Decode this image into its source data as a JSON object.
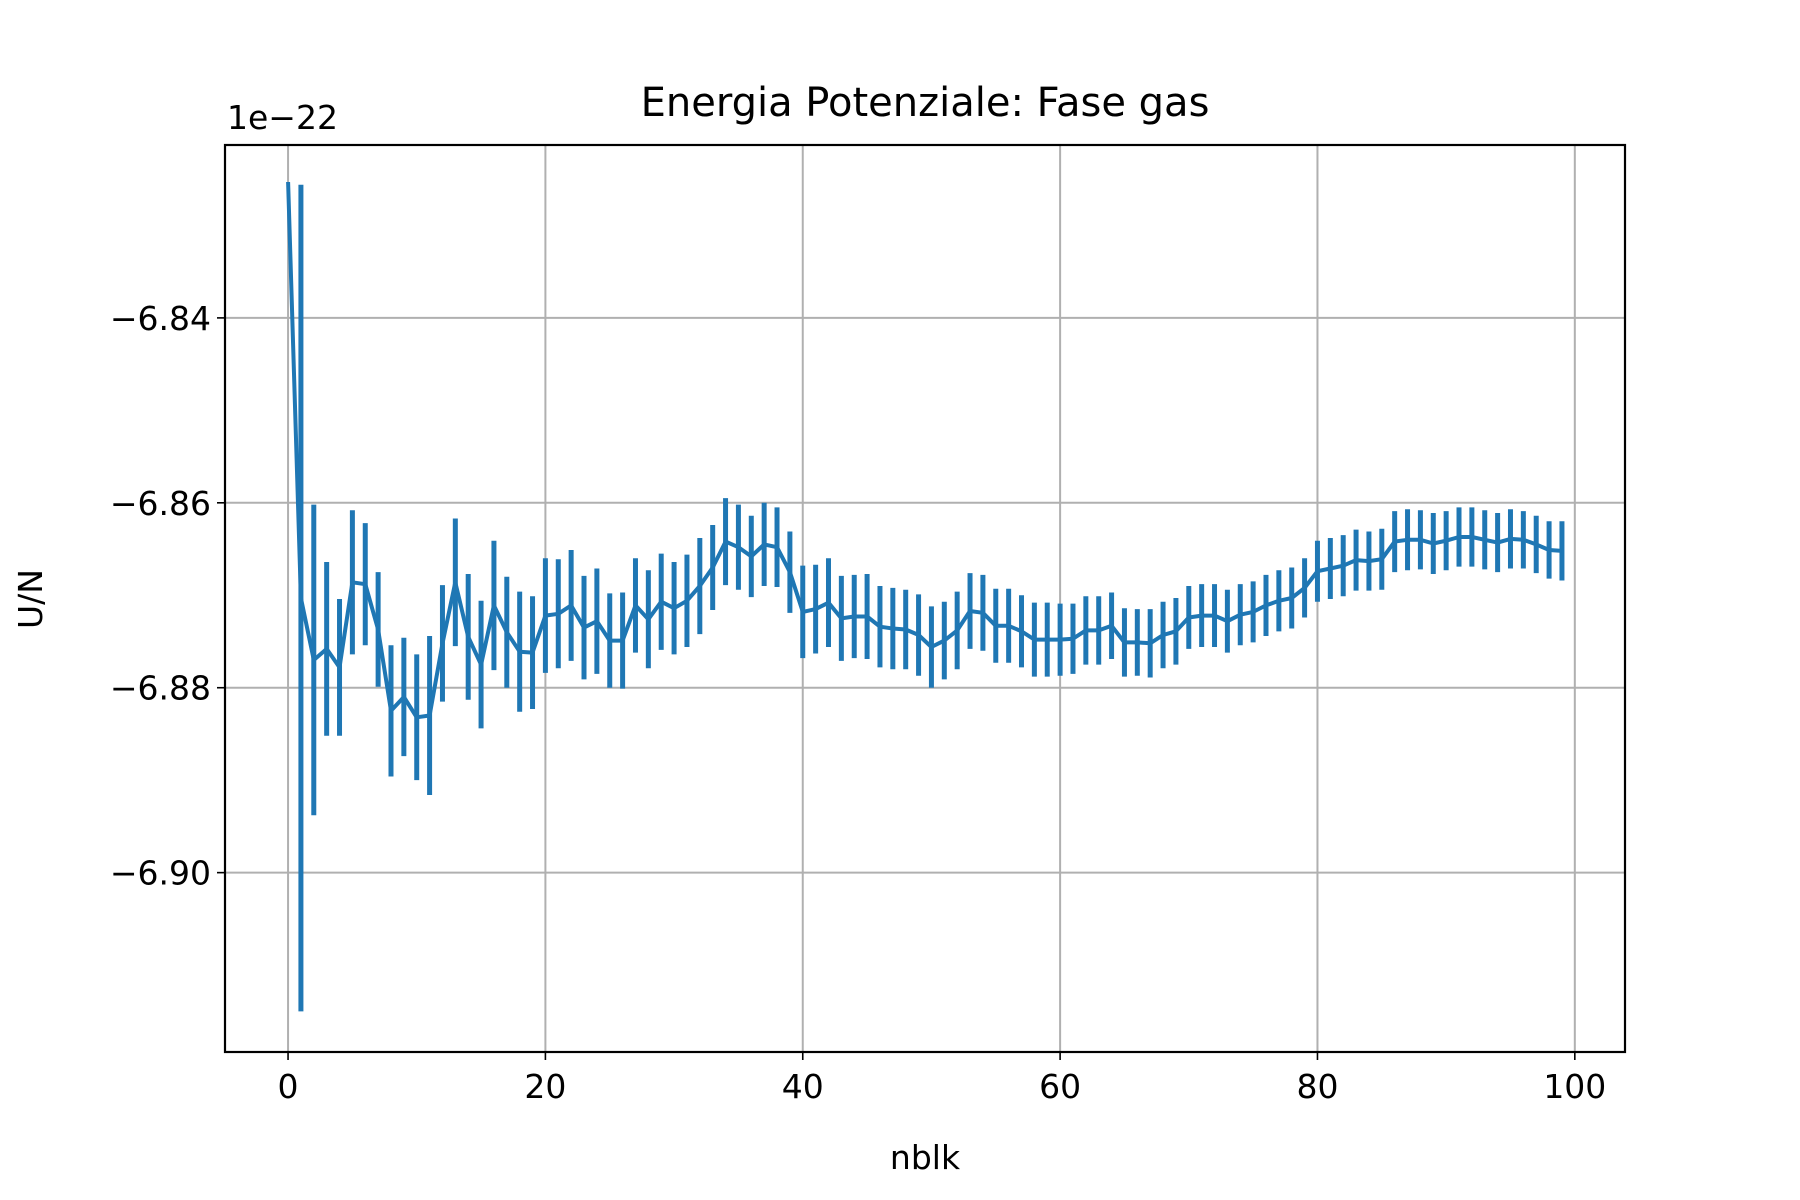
{
  "chart_data": {
    "type": "line",
    "title": "Energia Potenziale: Fase gas",
    "xlabel": "nblk",
    "ylabel": "U/N",
    "y_offset_label": "1e−22",
    "xlim": [
      -4.9,
      103.9
    ],
    "ylim": [
      -6.9194,
      -6.8213
    ],
    "x_ticks": [
      0,
      20,
      40,
      60,
      80,
      100
    ],
    "x_tick_labels": [
      "0",
      "20",
      "40",
      "60",
      "80",
      "100"
    ],
    "y_ticks": [
      -6.84,
      -6.86,
      -6.88,
      -6.9
    ],
    "y_tick_labels": [
      "−6.84",
      "−6.86",
      "−6.88",
      "−6.90"
    ],
    "grid": true,
    "color": "#1f77b4",
    "series": [
      {
        "x": [
          0,
          1,
          2,
          3,
          4,
          5,
          6,
          7,
          8,
          9,
          10,
          11,
          12,
          13,
          14,
          15,
          16,
          17,
          18,
          19,
          20,
          21,
          22,
          23,
          24,
          25,
          26,
          27,
          28,
          29,
          30,
          31,
          32,
          33,
          34,
          35,
          36,
          37,
          38,
          39,
          40,
          41,
          42,
          43,
          44,
          45,
          46,
          47,
          48,
          49,
          50,
          51,
          52,
          53,
          54,
          55,
          56,
          57,
          58,
          59,
          60,
          61,
          62,
          63,
          64,
          65,
          66,
          67,
          68,
          69,
          70,
          71,
          72,
          73,
          74,
          75,
          76,
          77,
          78,
          79,
          80,
          81,
          82,
          83,
          84,
          85,
          86,
          87,
          88,
          89,
          90,
          91,
          92,
          93,
          94,
          95,
          96,
          97,
          98,
          99
        ],
        "y": [
          -6.8253,
          -6.8703,
          -6.877,
          -6.8758,
          -6.8778,
          -6.8686,
          -6.8688,
          -6.8737,
          -6.8825,
          -6.881,
          -6.8832,
          -6.883,
          -6.8752,
          -6.8686,
          -6.8745,
          -6.8775,
          -6.8711,
          -6.874,
          -6.8761,
          -6.8762,
          -6.8722,
          -6.872,
          -6.8711,
          -6.8735,
          -6.8728,
          -6.8749,
          -6.8749,
          -6.8711,
          -6.8726,
          -6.8707,
          -6.8714,
          -6.8706,
          -6.869,
          -6.867,
          -6.8642,
          -6.8648,
          -6.8658,
          -6.8645,
          -6.8648,
          -6.8675,
          -6.8718,
          -6.8715,
          -6.8708,
          -6.8725,
          -6.8723,
          -6.8723,
          -6.8734,
          -6.8736,
          -6.8737,
          -6.8743,
          -6.8756,
          -6.8749,
          -6.8738,
          -6.8717,
          -6.8719,
          -6.8733,
          -6.8733,
          -6.8739,
          -6.8748,
          -6.8748,
          -6.8748,
          -6.8747,
          -6.8738,
          -6.8738,
          -6.8733,
          -6.8751,
          -6.8751,
          -6.8752,
          -6.8743,
          -6.8739,
          -6.8724,
          -6.8722,
          -6.8722,
          -6.8728,
          -6.8721,
          -6.8718,
          -6.8711,
          -6.8706,
          -6.8703,
          -6.8692,
          -6.8674,
          -6.8671,
          -6.8668,
          -6.8662,
          -6.8663,
          -6.8661,
          -6.8642,
          -6.864,
          -6.864,
          -6.8644,
          -6.8641,
          -6.8637,
          -6.8637,
          -6.864,
          -6.8643,
          -6.8639,
          -6.864,
          -6.8645,
          -6.8651,
          -6.8652
        ],
        "yerr": [
          0.0,
          0.0447,
          0.0168,
          0.0094,
          0.0074,
          0.0078,
          0.0066,
          0.0062,
          0.0071,
          0.0064,
          0.0068,
          0.0086,
          0.0063,
          0.0069,
          0.0068,
          0.0069,
          0.007,
          0.006,
          0.0065,
          0.0061,
          0.0062,
          0.0059,
          0.006,
          0.0056,
          0.0057,
          0.0051,
          0.0052,
          0.0051,
          0.0053,
          0.0052,
          0.005,
          0.005,
          0.0052,
          0.0046,
          0.0047,
          0.0046,
          0.0044,
          0.0045,
          0.0043,
          0.0044,
          0.005,
          0.0048,
          0.0048,
          0.0046,
          0.0045,
          0.0046,
          0.0044,
          0.0044,
          0.0043,
          0.0044,
          0.0044,
          0.0042,
          0.0042,
          0.0041,
          0.0041,
          0.004,
          0.004,
          0.0039,
          0.004,
          0.004,
          0.0039,
          0.0038,
          0.0037,
          0.0037,
          0.0036,
          0.0037,
          0.0036,
          0.0037,
          0.0036,
          0.0036,
          0.0034,
          0.0034,
          0.0034,
          0.0034,
          0.0033,
          0.0033,
          0.0033,
          0.0033,
          0.0033,
          0.0032,
          0.0033,
          0.0033,
          0.0033,
          0.0033,
          0.0032,
          0.0033,
          0.0033,
          0.0033,
          0.0032,
          0.0033,
          0.0032,
          0.0032,
          0.0032,
          0.0032,
          0.0032,
          0.0032,
          0.0031,
          0.0031,
          0.0031,
          0.0032
        ]
      }
    ]
  }
}
